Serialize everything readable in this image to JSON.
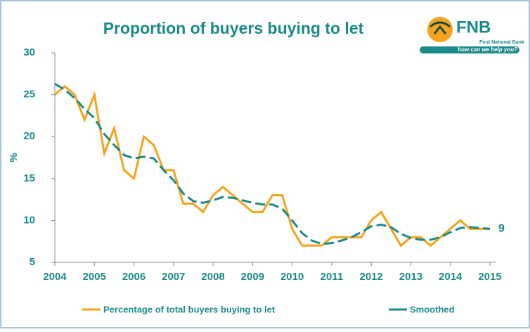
{
  "chart_data": {
    "type": "line",
    "title": "Proportion of buyers buying to let",
    "y_label": "%",
    "categories": [
      "2004",
      null,
      null,
      null,
      "2005",
      null,
      null,
      null,
      "2006",
      null,
      null,
      null,
      "2007",
      null,
      null,
      null,
      "2008",
      null,
      null,
      null,
      "2009",
      null,
      null,
      null,
      "2010",
      null,
      null,
      null,
      "2011",
      null,
      null,
      null,
      "2012",
      null,
      null,
      null,
      "2013",
      null,
      null,
      null,
      "2014",
      null,
      null,
      null,
      "2015"
    ],
    "series": [
      {
        "name": "Percentage of total buyers buying to let",
        "color": "#f5a31a",
        "dashed": false,
        "values": [
          25,
          26,
          25,
          22,
          25,
          18,
          21,
          16,
          15,
          20,
          19,
          16,
          16,
          12,
          12,
          11,
          13,
          14,
          13,
          12,
          11,
          11,
          13,
          13,
          9,
          7,
          7,
          7,
          8,
          8,
          8,
          8,
          10,
          11,
          9,
          7,
          8,
          8,
          7,
          8,
          9,
          10,
          9,
          9,
          9
        ]
      },
      {
        "name": "Smoothed",
        "color": "#1a8a8a",
        "dashed": true,
        "values": [
          26.3,
          25.6,
          24.6,
          23.3,
          22.2,
          20.3,
          19.0,
          17.8,
          17.4,
          17.6,
          17.4,
          16.0,
          14.8,
          13.2,
          12.3,
          12.1,
          12.4,
          12.8,
          12.7,
          12.4,
          12.1,
          11.9,
          11.9,
          11.4,
          10.0,
          8.5,
          7.6,
          7.2,
          7.3,
          7.6,
          8.0,
          8.6,
          9.3,
          9.5,
          9.2,
          8.4,
          7.9,
          7.7,
          7.7,
          8.0,
          8.6,
          9.1,
          9.2,
          9.1,
          9.0
        ]
      }
    ],
    "end_label": "9",
    "ylim": [
      5,
      30
    ],
    "yticks": [
      5,
      10,
      15,
      20,
      25,
      30
    ],
    "grid": false,
    "legend": "bottom"
  },
  "logo": {
    "name": "FNB",
    "subtitle": "First National Bank",
    "tagline": "how can we help you?"
  }
}
